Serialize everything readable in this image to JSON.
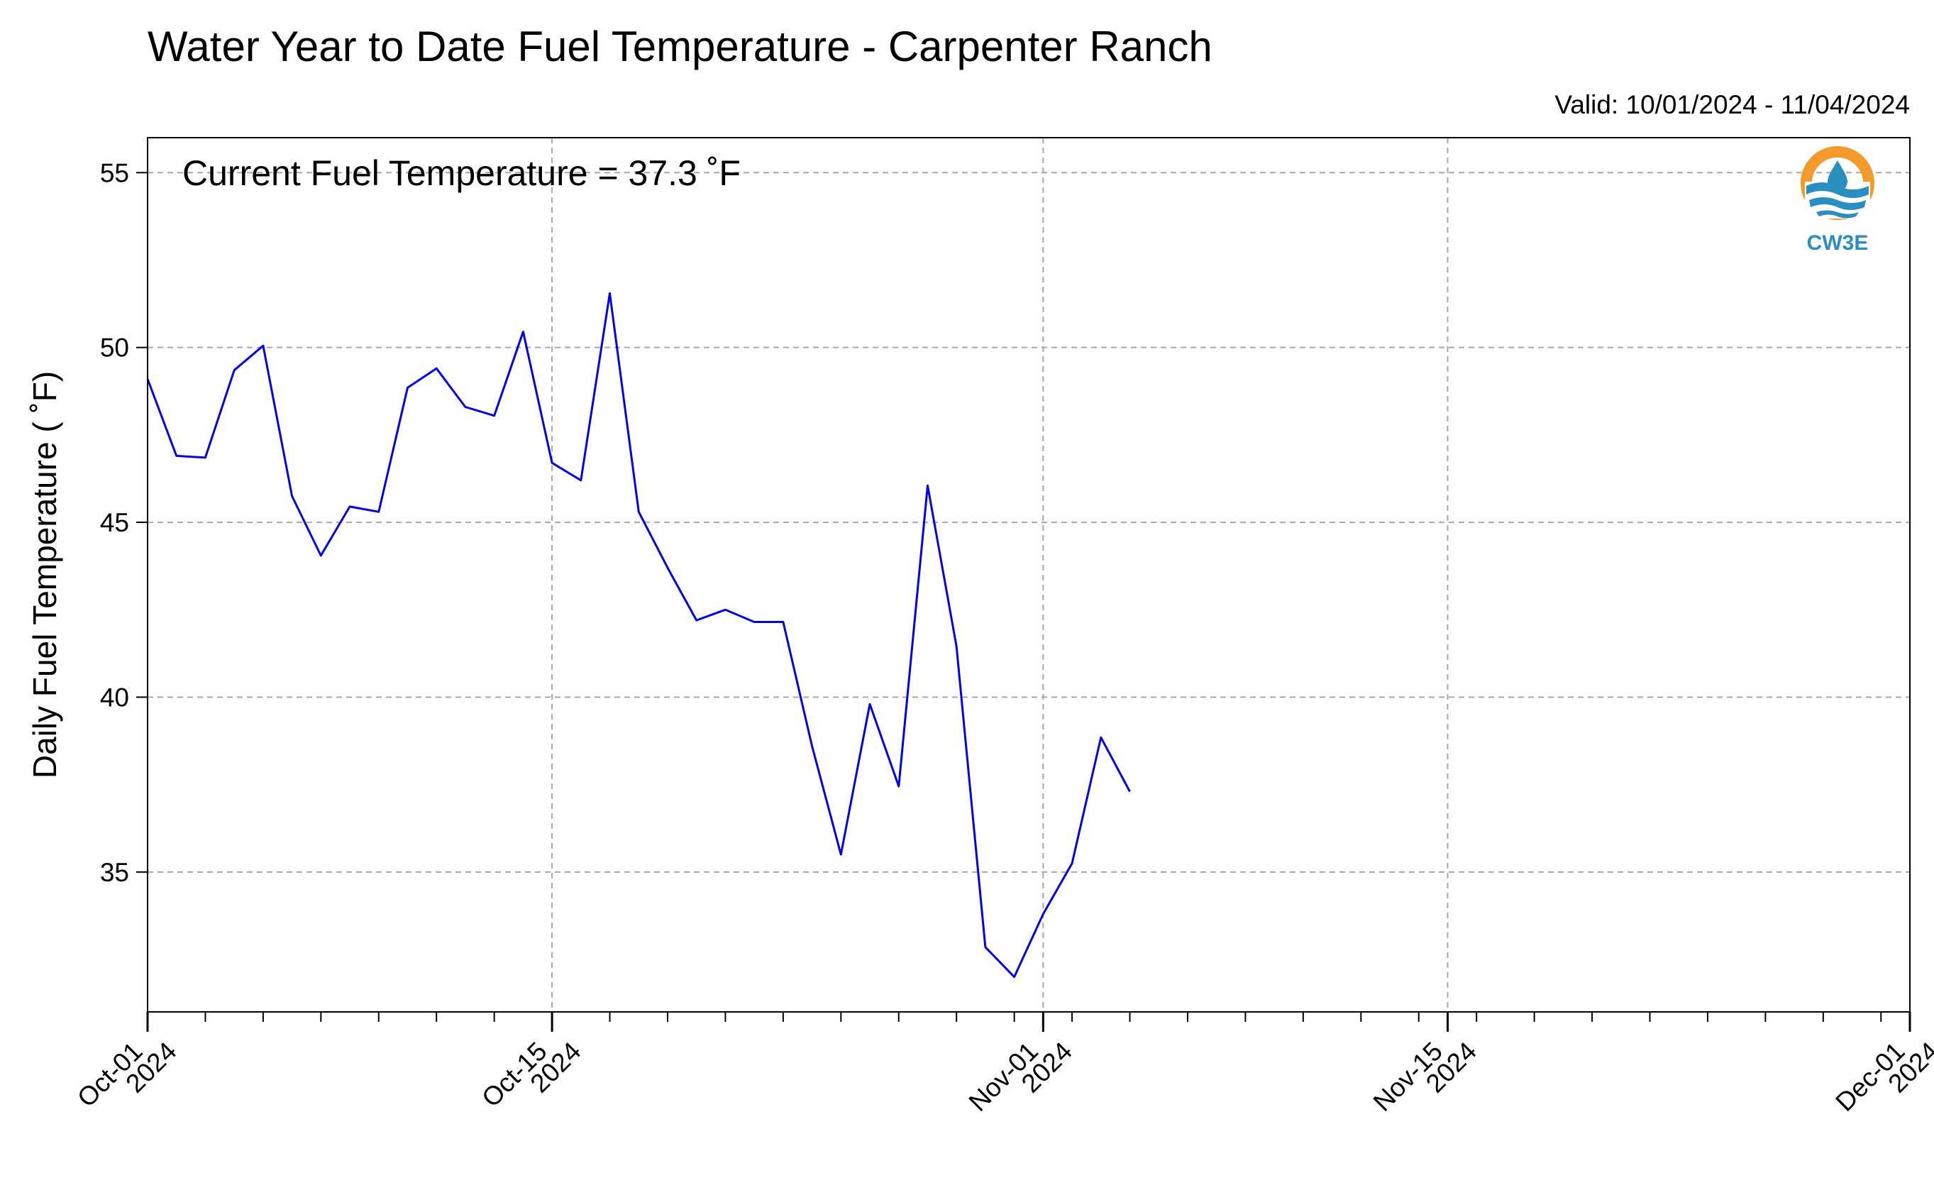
{
  "chart_data": {
    "type": "line",
    "title": "Water Year to Date Fuel Temperature - Carpenter Ranch",
    "subtitle": "Valid: 10/01/2024 - 11/04/2024",
    "ylabel": "Daily Fuel Temperature ( ˚F)",
    "xlabel": "",
    "annotation": "Current Fuel Temperature = 37.3  ˚F",
    "ylim": [
      31,
      56
    ],
    "xlim": [
      "2024-10-01",
      "2024-12-01"
    ],
    "yticks": [
      35,
      40,
      45,
      50,
      55
    ],
    "xticks": [
      {
        "date": "2024-10-01",
        "label": [
          "Oct-01",
          "2024"
        ]
      },
      {
        "date": "2024-10-15",
        "label": [
          "Oct-15",
          "2024"
        ]
      },
      {
        "date": "2024-11-01",
        "label": [
          "Nov-01",
          "2024"
        ]
      },
      {
        "date": "2024-11-15",
        "label": [
          "Nov-15",
          "2024"
        ]
      },
      {
        "date": "2024-12-01",
        "label": [
          "Dec-01",
          "2024"
        ]
      }
    ],
    "grid": true,
    "line_color": "#0000ee",
    "series": [
      {
        "x": [
          "2024-10-01",
          "2024-10-02",
          "2024-10-03",
          "2024-10-04",
          "2024-10-05",
          "2024-10-06",
          "2024-10-07",
          "2024-10-08",
          "2024-10-09",
          "2024-10-10",
          "2024-10-11",
          "2024-10-12",
          "2024-10-13",
          "2024-10-14",
          "2024-10-15",
          "2024-10-16",
          "2024-10-17",
          "2024-10-18",
          "2024-10-19",
          "2024-10-20",
          "2024-10-21",
          "2024-10-22",
          "2024-10-23",
          "2024-10-24",
          "2024-10-25",
          "2024-10-26",
          "2024-10-27",
          "2024-10-28",
          "2024-10-29",
          "2024-10-30",
          "2024-10-31",
          "2024-11-01",
          "2024-11-02",
          "2024-11-03",
          "2024-11-04"
        ],
        "values": [
          49.1,
          46.9,
          46.85,
          49.35,
          50.05,
          45.75,
          44.05,
          45.45,
          45.3,
          48.85,
          49.4,
          48.3,
          48.05,
          50.45,
          46.7,
          46.2,
          51.55,
          45.3,
          43.7,
          42.2,
          42.5,
          42.15,
          42.15,
          38.6,
          35.5,
          39.8,
          37.45,
          46.05,
          41.45,
          32.85,
          32.0,
          33.8,
          35.25,
          38.85,
          37.3
        ]
      }
    ]
  },
  "logo": {
    "text": "CW3E",
    "ring_color": "#f39a2a",
    "drop_color": "#2a8fc0"
  }
}
